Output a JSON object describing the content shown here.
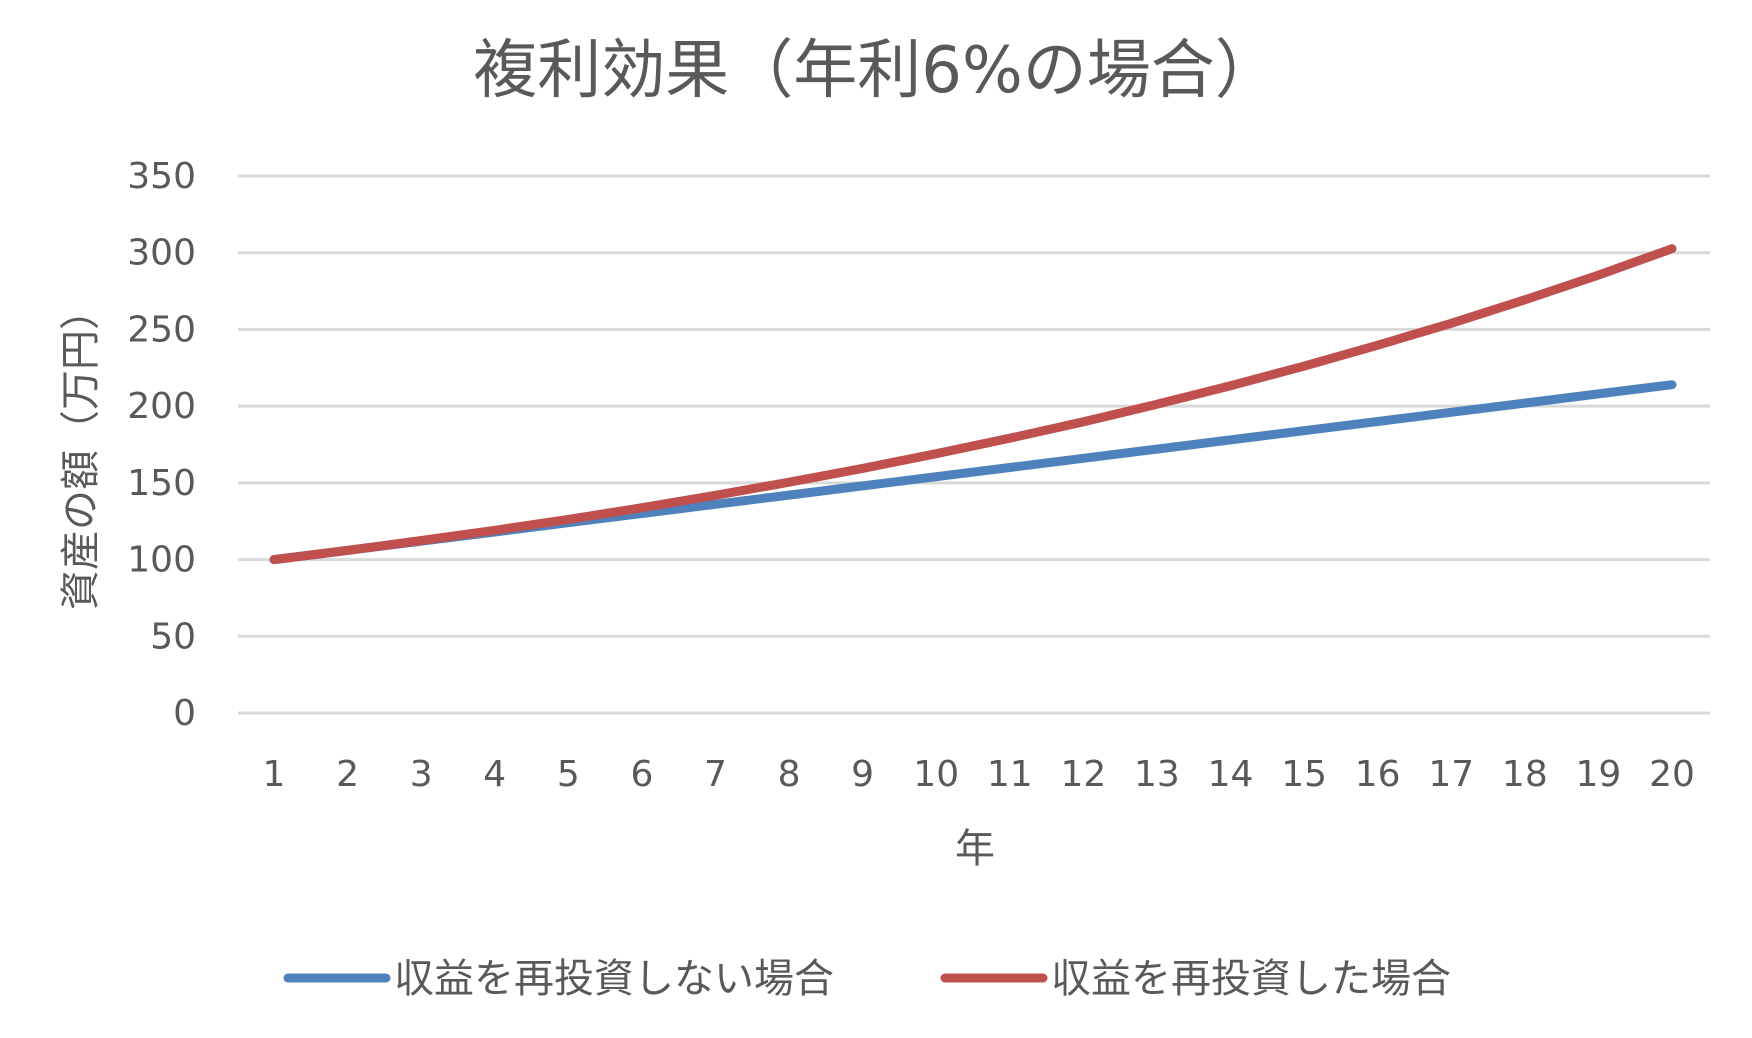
{
  "chart_data": {
    "type": "line",
    "title": "複利効果（年利6%の場合）",
    "xlabel": "年",
    "ylabel": "資産の額（万円）",
    "categories": [
      "1",
      "2",
      "3",
      "4",
      "5",
      "6",
      "7",
      "8",
      "9",
      "10",
      "11",
      "12",
      "13",
      "14",
      "15",
      "16",
      "17",
      "18",
      "19",
      "20"
    ],
    "ylim": [
      0,
      350
    ],
    "yticks": [
      "0",
      "50",
      "100",
      "150",
      "200",
      "250",
      "300",
      "350"
    ],
    "grid": true,
    "legend_position": "bottom",
    "series": [
      {
        "name": "収益を再投資しない場合",
        "color": "#4f81bd",
        "values": [
          100,
          106,
          112,
          118,
          124,
          130,
          136,
          142,
          148,
          154,
          160,
          166,
          172,
          178,
          184,
          190,
          196,
          202,
          208,
          214
        ]
      },
      {
        "name": "収益を再投資した場合",
        "color": "#c0504d",
        "values": [
          100,
          106,
          112.4,
          119.1,
          126.2,
          133.8,
          141.9,
          150.4,
          159.4,
          169.0,
          179.1,
          189.8,
          201.2,
          213.3,
          226.1,
          239.7,
          254.0,
          269.3,
          285.4,
          302.6
        ]
      }
    ]
  }
}
